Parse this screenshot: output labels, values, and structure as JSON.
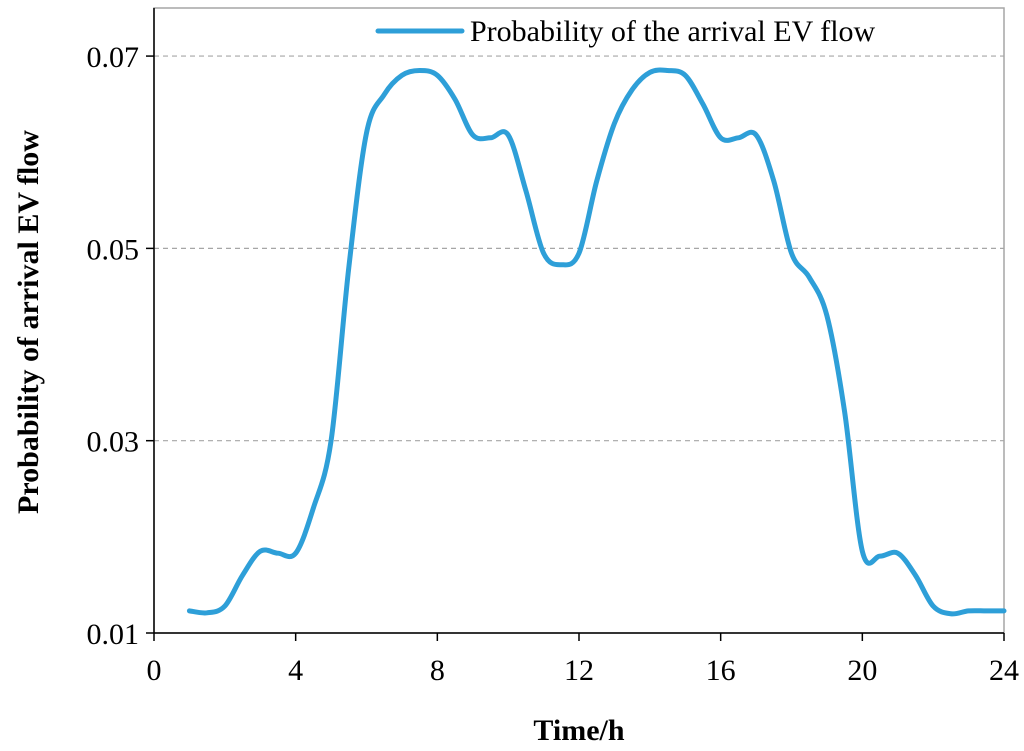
{
  "chart_data": {
    "type": "line",
    "title": "",
    "xlabel": "Time/h",
    "ylabel": "Probability of arrival EV flow",
    "xlim": [
      0,
      24
    ],
    "ylim": [
      0.01,
      0.075
    ],
    "xticks": [
      0,
      4,
      8,
      12,
      16,
      20,
      24
    ],
    "xtick_labels": [
      "0",
      "4",
      "8",
      "12",
      "16",
      "20",
      "24"
    ],
    "yticks": [
      0.01,
      0.03,
      0.05,
      0.07
    ],
    "ytick_labels": [
      "0.01",
      "0.03",
      "0.05",
      "0.07"
    ],
    "grid": "horizontal dashed",
    "legend_position": "top-right",
    "line_color": "#2e9fd8",
    "grid_color": "#a6a6a6",
    "series": [
      {
        "name": "Probability of the arrival EV flow",
        "x": [
          1,
          1.5,
          2,
          2.5,
          3,
          3.5,
          4,
          4.5,
          5,
          5.5,
          6,
          6.5,
          7,
          7.5,
          8,
          8.5,
          9,
          9.5,
          10,
          10.5,
          11,
          11.5,
          12,
          12.5,
          13,
          13.5,
          14,
          14.5,
          15,
          15.5,
          16,
          16.5,
          17,
          17.5,
          18,
          18.5,
          19,
          19.5,
          20,
          20.5,
          21,
          21.5,
          22,
          22.5,
          23,
          23.5,
          24
        ],
        "values": [
          0.0123,
          0.0121,
          0.0128,
          0.016,
          0.0185,
          0.0183,
          0.0183,
          0.023,
          0.03,
          0.048,
          0.062,
          0.066,
          0.068,
          0.0685,
          0.068,
          0.0655,
          0.0618,
          0.0615,
          0.0618,
          0.056,
          0.0495,
          0.0483,
          0.0495,
          0.057,
          0.063,
          0.0665,
          0.0683,
          0.0685,
          0.068,
          0.065,
          0.0615,
          0.0615,
          0.0618,
          0.057,
          0.0495,
          0.047,
          0.043,
          0.033,
          0.0185,
          0.018,
          0.0183,
          0.016,
          0.0128,
          0.012,
          0.0123,
          0.0123,
          0.0123
        ]
      }
    ]
  }
}
